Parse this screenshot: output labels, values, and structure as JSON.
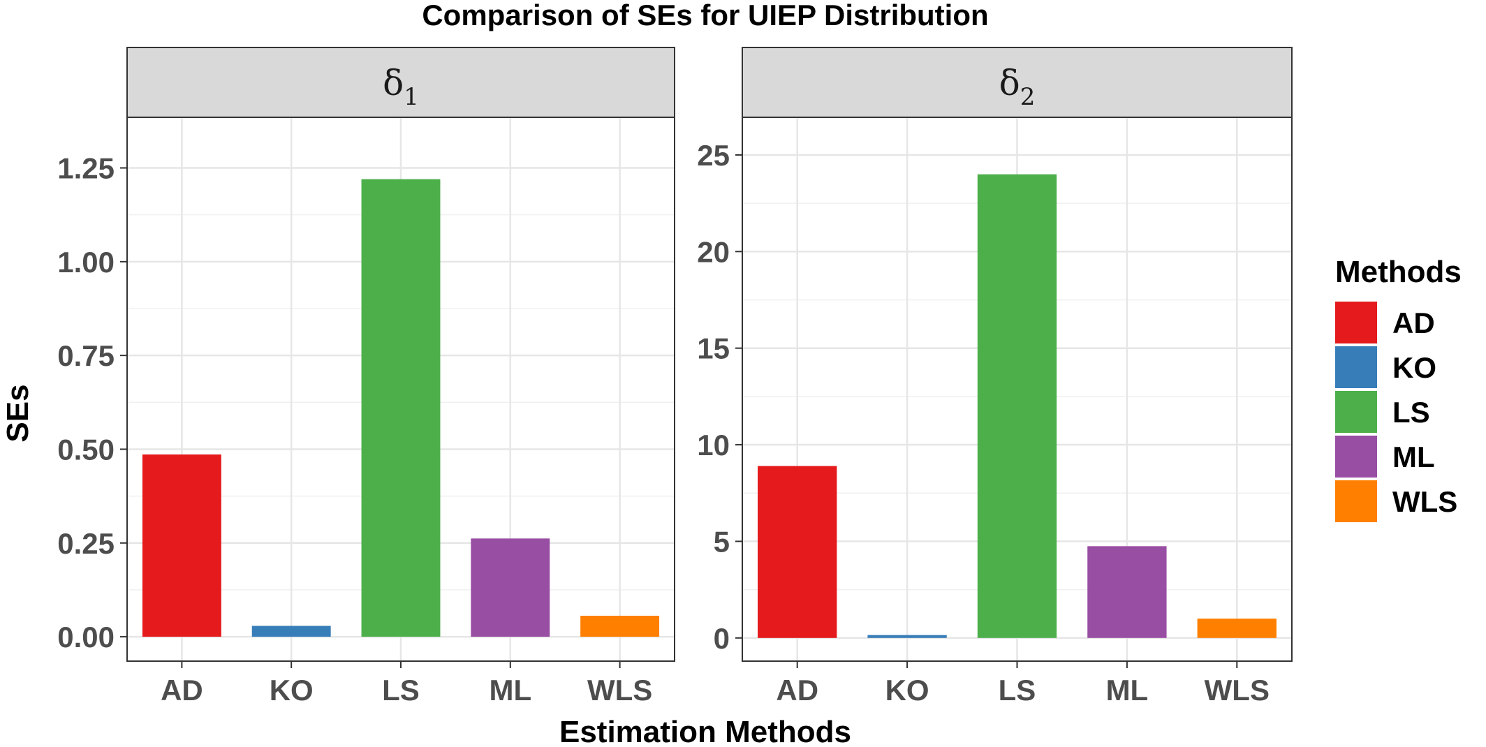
{
  "chart_data": {
    "type": "bar",
    "title": "Comparison of SEs for UIEP Distribution",
    "xlabel": "Estimation Methods",
    "ylabel": "SEs",
    "categories": [
      "AD",
      "KO",
      "LS",
      "ML",
      "WLS"
    ],
    "colors": {
      "AD": "#E41A1C",
      "KO": "#377EB8",
      "LS": "#4DAF4A",
      "ML": "#984EA3",
      "WLS": "#FF7F00"
    },
    "legend": {
      "title": "Methods",
      "position": "right",
      "entries": [
        "AD",
        "KO",
        "LS",
        "ML",
        "WLS"
      ]
    },
    "grid": true,
    "panels": [
      {
        "strip_symbol": "δ",
        "strip_subscript": "1",
        "values": [
          0.486,
          0.029,
          1.22,
          0.262,
          0.056
        ],
        "ylim": [
          -0.065,
          1.385
        ],
        "yticks": [
          0.0,
          0.25,
          0.5,
          0.75,
          1.0,
          1.25
        ],
        "ytick_labels": [
          "0.00",
          "0.25",
          "0.50",
          "0.75",
          "1.00",
          "1.25"
        ]
      },
      {
        "strip_symbol": "δ",
        "strip_subscript": "2",
        "values": [
          8.9,
          0.15,
          24.0,
          4.75,
          1.0
        ],
        "ylim": [
          -1.2,
          26.95
        ],
        "yticks": [
          0,
          5,
          10,
          15,
          20,
          25
        ],
        "ytick_labels": [
          "0",
          "5",
          "10",
          "15",
          "20",
          "25"
        ]
      }
    ]
  }
}
